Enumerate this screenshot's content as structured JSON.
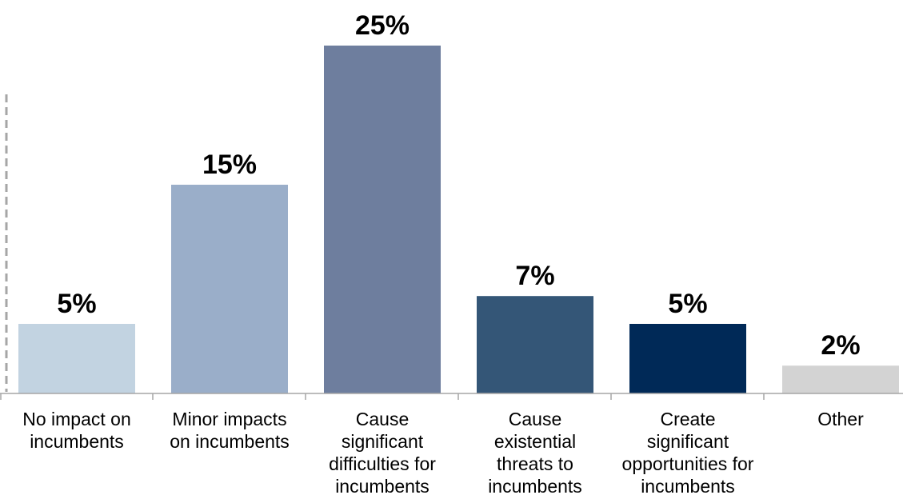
{
  "colors": {
    "axis": "#a6a6a6",
    "dashed_guide": "#a6a6a6",
    "bars": [
      "#c2d3e1",
      "#9aaec9",
      "#6e7e9e",
      "#345677",
      "#002957",
      "#d3d3d3"
    ]
  },
  "chart_data": {
    "type": "bar",
    "categories": [
      [
        "No impact on",
        "incumbents"
      ],
      [
        "Minor impacts",
        "on incumbents"
      ],
      [
        "Cause",
        "significant",
        "difficulties for",
        "incumbents"
      ],
      [
        "Cause",
        "existential",
        "threats to",
        "incumbents"
      ],
      [
        "Create",
        "significant",
        "opportunities for",
        "incumbents"
      ],
      [
        "Other"
      ]
    ],
    "values": [
      5,
      15,
      25,
      7,
      5,
      2
    ],
    "value_labels": [
      "5%",
      "15%",
      "25%",
      "7%",
      "5%",
      "2%"
    ],
    "title": "",
    "xlabel": "",
    "ylabel": "",
    "ylim": [
      0,
      25
    ],
    "grid": false,
    "legend": "none"
  }
}
